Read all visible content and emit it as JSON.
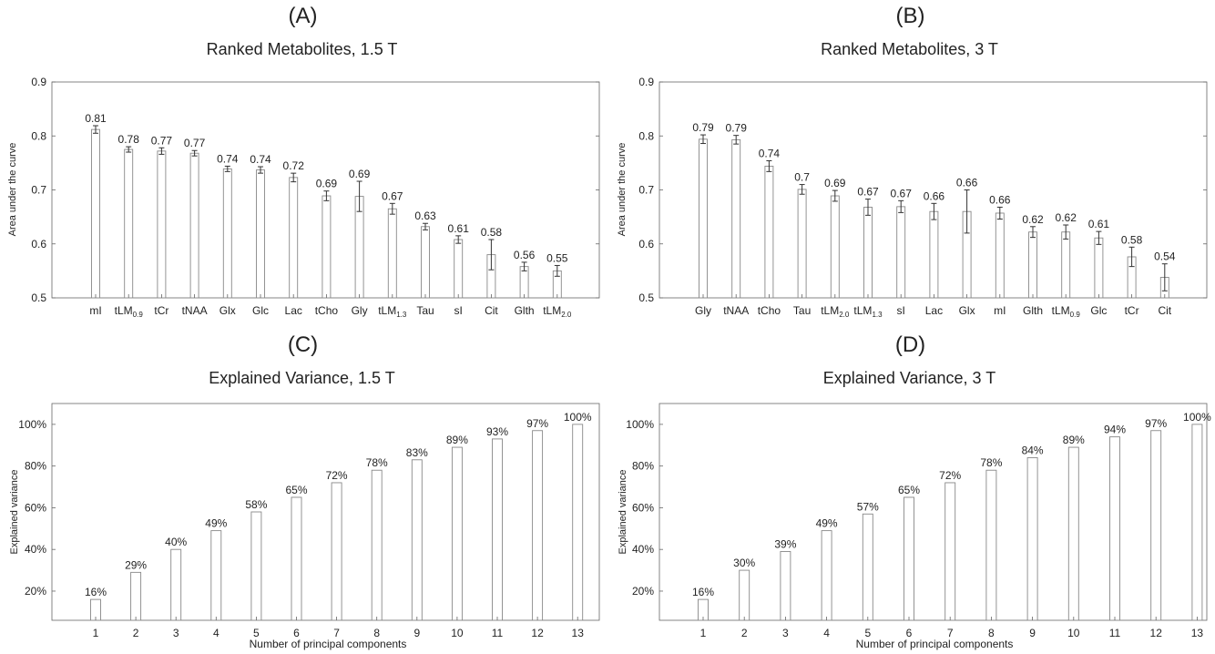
{
  "chart_data": [
    {
      "id": "A",
      "type": "bar",
      "letter": "(A)",
      "title": "Ranked Metabolites, 1.5 T",
      "xlabel": "",
      "ylabel": "Area under the curve",
      "ylim": [
        0.5,
        0.9
      ],
      "yticks": [
        0.5,
        0.6,
        0.7,
        0.8,
        0.9
      ],
      "ytick_labels": [
        "0.5",
        "0.6",
        "0.7",
        "0.8",
        "0.9"
      ],
      "categories": [
        {
          "base": "mI",
          "sub": ""
        },
        {
          "base": "tLM",
          "sub": "0.9"
        },
        {
          "base": "tCr",
          "sub": ""
        },
        {
          "base": "tNAA",
          "sub": ""
        },
        {
          "base": "Glx",
          "sub": ""
        },
        {
          "base": "Glc",
          "sub": ""
        },
        {
          "base": "Lac",
          "sub": ""
        },
        {
          "base": "tCho",
          "sub": ""
        },
        {
          "base": "Gly",
          "sub": ""
        },
        {
          "base": "tLM",
          "sub": "1.3"
        },
        {
          "base": "Tau",
          "sub": ""
        },
        {
          "base": "sI",
          "sub": ""
        },
        {
          "base": "Cit",
          "sub": ""
        },
        {
          "base": "Glth",
          "sub": ""
        },
        {
          "base": "tLM",
          "sub": "2.0"
        }
      ],
      "values": [
        0.812,
        0.775,
        0.772,
        0.768,
        0.739,
        0.737,
        0.723,
        0.689,
        0.688,
        0.665,
        0.632,
        0.608,
        0.58,
        0.558,
        0.55
      ],
      "errors": [
        0.007,
        0.005,
        0.006,
        0.005,
        0.005,
        0.006,
        0.008,
        0.009,
        0.028,
        0.01,
        0.006,
        0.007,
        0.028,
        0.008,
        0.01
      ],
      "value_labels": [
        "0.81",
        "0.78",
        "0.77",
        "0.77",
        "0.74",
        "0.74",
        "0.72",
        "0.69",
        "0.69",
        "0.67",
        "0.63",
        "0.61",
        "0.58",
        "0.56",
        "0.55"
      ],
      "bar_color": "#ffffff",
      "edge_color": "#888888",
      "grid": false,
      "legend": "none"
    },
    {
      "id": "B",
      "type": "bar",
      "letter": "(B)",
      "title": "Ranked Metabolites, 3 T",
      "xlabel": "",
      "ylabel": "Area under the curve",
      "ylim": [
        0.5,
        0.9
      ],
      "yticks": [
        0.5,
        0.6,
        0.7,
        0.8,
        0.9
      ],
      "ytick_labels": [
        "0.5",
        "0.6",
        "0.7",
        "0.8",
        "0.9"
      ],
      "categories": [
        {
          "base": "Gly",
          "sub": ""
        },
        {
          "base": "tNAA",
          "sub": ""
        },
        {
          "base": "tCho",
          "sub": ""
        },
        {
          "base": "Tau",
          "sub": ""
        },
        {
          "base": "tLM",
          "sub": "2.0"
        },
        {
          "base": "tLM",
          "sub": "1.3"
        },
        {
          "base": "sI",
          "sub": ""
        },
        {
          "base": "Lac",
          "sub": ""
        },
        {
          "base": "Glx",
          "sub": ""
        },
        {
          "base": "mI",
          "sub": ""
        },
        {
          "base": "Glth",
          "sub": ""
        },
        {
          "base": "tLM",
          "sub": "0.9"
        },
        {
          "base": "Glc",
          "sub": ""
        },
        {
          "base": "tCr",
          "sub": ""
        },
        {
          "base": "Cit",
          "sub": ""
        }
      ],
      "values": [
        0.794,
        0.793,
        0.744,
        0.701,
        0.689,
        0.668,
        0.669,
        0.66,
        0.66,
        0.657,
        0.622,
        0.622,
        0.611,
        0.576,
        0.538
      ],
      "errors": [
        0.008,
        0.008,
        0.01,
        0.009,
        0.01,
        0.015,
        0.011,
        0.015,
        0.04,
        0.011,
        0.01,
        0.013,
        0.012,
        0.018,
        0.025
      ],
      "value_labels": [
        "0.79",
        "0.79",
        "0.74",
        "0.7",
        "0.69",
        "0.67",
        "0.67",
        "0.66",
        "0.66",
        "0.66",
        "0.62",
        "0.62",
        "0.61",
        "0.58",
        "0.54"
      ],
      "bar_color": "#ffffff",
      "edge_color": "#888888",
      "grid": false,
      "legend": "none"
    },
    {
      "id": "C",
      "type": "bar",
      "letter": "(C)",
      "title": "Explained Variance, 1.5 T",
      "xlabel": "Number of principal components",
      "ylabel": "Explained variance",
      "ylim": [
        6,
        110
      ],
      "yticks": [
        20,
        40,
        60,
        80,
        100
      ],
      "ytick_labels": [
        "20%",
        "40%",
        "60%",
        "80%",
        "100%"
      ],
      "categories": [
        {
          "base": "1",
          "sub": ""
        },
        {
          "base": "2",
          "sub": ""
        },
        {
          "base": "3",
          "sub": ""
        },
        {
          "base": "4",
          "sub": ""
        },
        {
          "base": "5",
          "sub": ""
        },
        {
          "base": "6",
          "sub": ""
        },
        {
          "base": "7",
          "sub": ""
        },
        {
          "base": "8",
          "sub": ""
        },
        {
          "base": "9",
          "sub": ""
        },
        {
          "base": "10",
          "sub": ""
        },
        {
          "base": "11",
          "sub": ""
        },
        {
          "base": "12",
          "sub": ""
        },
        {
          "base": "13",
          "sub": ""
        }
      ],
      "values": [
        16,
        29,
        40,
        49,
        58,
        65,
        72,
        78,
        83,
        89,
        93,
        97,
        100
      ],
      "errors": [],
      "value_labels": [
        "16%",
        "29%",
        "40%",
        "49%",
        "58%",
        "65%",
        "72%",
        "78%",
        "83%",
        "89%",
        "93%",
        "97%",
        "100%"
      ],
      "bar_color": "#ffffff",
      "edge_color": "#888888",
      "grid": false,
      "legend": "none"
    },
    {
      "id": "D",
      "type": "bar",
      "letter": "(D)",
      "title": "Explained Variance, 3 T",
      "xlabel": "Number of principal components",
      "ylabel": "Explained variance",
      "ylim": [
        6,
        110
      ],
      "yticks": [
        20,
        40,
        60,
        80,
        100
      ],
      "ytick_labels": [
        "20%",
        "40%",
        "60%",
        "80%",
        "100%"
      ],
      "categories": [
        {
          "base": "1",
          "sub": ""
        },
        {
          "base": "2",
          "sub": ""
        },
        {
          "base": "3",
          "sub": ""
        },
        {
          "base": "4",
          "sub": ""
        },
        {
          "base": "5",
          "sub": ""
        },
        {
          "base": "6",
          "sub": ""
        },
        {
          "base": "7",
          "sub": ""
        },
        {
          "base": "8",
          "sub": ""
        },
        {
          "base": "9",
          "sub": ""
        },
        {
          "base": "10",
          "sub": ""
        },
        {
          "base": "11",
          "sub": ""
        },
        {
          "base": "12",
          "sub": ""
        },
        {
          "base": "13",
          "sub": ""
        }
      ],
      "values": [
        16,
        30,
        39,
        49,
        57,
        65,
        72,
        78,
        84,
        89,
        94,
        97,
        100
      ],
      "errors": [],
      "value_labels": [
        "16%",
        "30%",
        "39%",
        "49%",
        "57%",
        "65%",
        "72%",
        "78%",
        "84%",
        "89%",
        "94%",
        "97%",
        "100%"
      ],
      "bar_color": "#ffffff",
      "edge_color": "#888888",
      "grid": false,
      "legend": "none"
    }
  ]
}
